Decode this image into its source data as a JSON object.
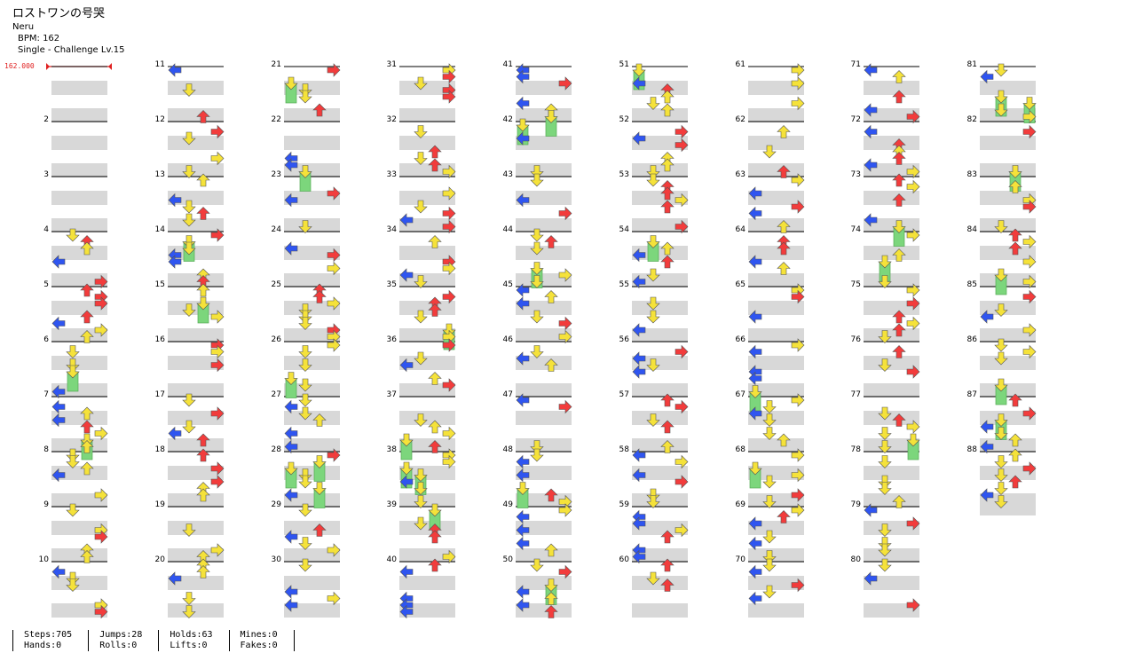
{
  "song": {
    "title": "ロストワンの号哭",
    "artist": "Neru",
    "bpm": "BPM: 162",
    "difficulty": "Single - Challenge  Lv.15"
  },
  "bpm_marker": "162.000",
  "colors": {
    "left_arrow": "#2f55f0",
    "up_arrow": "#f23c3c",
    "down_arrow": "#f5e23a",
    "hold": "#7cd67c",
    "lane_stripe": "#d8d8d8",
    "measure_line": "#000000"
  },
  "measure_labels": [
    "2",
    "3",
    "4",
    "5",
    "6",
    "7",
    "8",
    "9",
    "10",
    "11",
    "12",
    "13",
    "14",
    "15",
    "16",
    "17",
    "18",
    "19",
    "20",
    "21",
    "22",
    "23",
    "24",
    "25",
    "26",
    "27",
    "28",
    "29",
    "30",
    "31",
    "32",
    "33",
    "34",
    "35",
    "36",
    "37",
    "38",
    "39",
    "40",
    "41",
    "42",
    "43",
    "44",
    "45",
    "46",
    "47",
    "48",
    "49",
    "50",
    "51",
    "52",
    "53",
    "54",
    "55",
    "56",
    "57",
    "58",
    "59",
    "60",
    "61",
    "62",
    "63",
    "64",
    "65",
    "66",
    "67",
    "68",
    "69",
    "70",
    "71",
    "72",
    "73",
    "74",
    "75",
    "76",
    "77",
    "78",
    "79",
    "80",
    "81",
    "82",
    "83",
    "84",
    "85",
    "86",
    "87",
    "88"
  ],
  "stats": [
    {
      "a": "Steps:705",
      "b": "Hands:0"
    },
    {
      "a": "Jumps:28",
      "b": "Rolls:0"
    },
    {
      "a": "Holds:63",
      "b": "Lifts:0"
    },
    {
      "a": "Mines:0",
      "b": "Fakes:0"
    }
  ]
}
